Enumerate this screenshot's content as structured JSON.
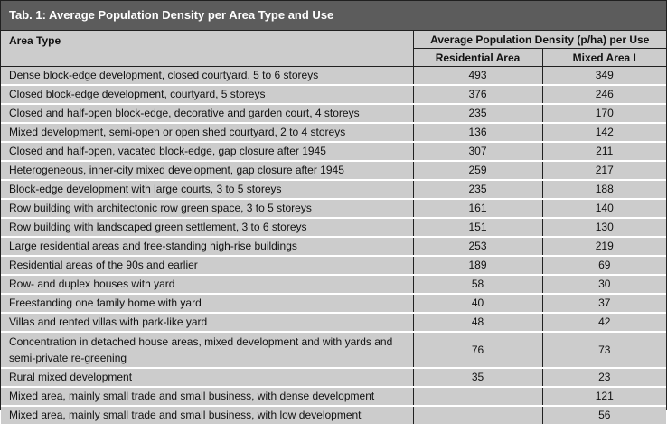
{
  "table": {
    "title": "Tab. 1: Average Population Density per Area Type and Use",
    "headers": {
      "area_type": "Area Type",
      "group": "Average Population Density (p/ha) per Use",
      "residential": "Residential Area",
      "mixed": "Mixed Area I"
    },
    "rows": [
      {
        "area": "Dense block-edge development, closed courtyard, 5 to 6 storeys",
        "residential": "493",
        "mixed": "349"
      },
      {
        "area": "Closed block-edge development, courtyard, 5 storeys",
        "residential": "376",
        "mixed": "246"
      },
      {
        "area": "Closed and half-open block-edge, decorative and garden court, 4 storeys",
        "residential": "235",
        "mixed": "170"
      },
      {
        "area": "Mixed development, semi-open or open shed courtyard, 2 to 4 storeys",
        "residential": "136",
        "mixed": "142"
      },
      {
        "area": "Closed and half-open, vacated block-edge, gap closure after 1945",
        "residential": "307",
        "mixed": "211"
      },
      {
        "area": "Heterogeneous, inner-city mixed development, gap closure after 1945",
        "residential": "259",
        "mixed": "217"
      },
      {
        "area": "Block-edge development with large courts, 3 to 5 storeys",
        "residential": "235",
        "mixed": "188"
      },
      {
        "area": "Row building with architectonic row green space, 3 to 5 storeys",
        "residential": "161",
        "mixed": "140"
      },
      {
        "area": "Row building with landscaped green settlement, 3 to 6 storeys",
        "residential": "151",
        "mixed": "130"
      },
      {
        "area": "Large residential areas and free-standing high-rise buildings",
        "residential": "253",
        "mixed": "219"
      },
      {
        "area": "Residential areas of the 90s and earlier",
        "residential": "189",
        "mixed": "69"
      },
      {
        "area": "Row- and duplex houses with yard",
        "residential": "58",
        "mixed": "30"
      },
      {
        "area": "Freestanding one family home with yard",
        "residential": "40",
        "mixed": "37"
      },
      {
        "area": "Villas and rented villas with park-like yard",
        "residential": "48",
        "mixed": "42"
      },
      {
        "area": "Concentration in detached house areas, mixed development and with yards and semi-private re-greening",
        "residential": "76",
        "mixed": "73"
      },
      {
        "area": "Rural mixed development",
        "residential": "35",
        "mixed": "23"
      },
      {
        "area": "Mixed area, mainly small trade and small business, with dense development",
        "residential": "",
        "mixed": "121"
      },
      {
        "area": "Mixed area, mainly small trade and small business, with low development",
        "residential": "",
        "mixed": "56"
      }
    ]
  },
  "colors": {
    "title_bar": "#5c5c5c",
    "title_text": "#ffffff",
    "cell_bg": "#cccccc",
    "row_separator": "#ffffff",
    "border": "#202020"
  }
}
